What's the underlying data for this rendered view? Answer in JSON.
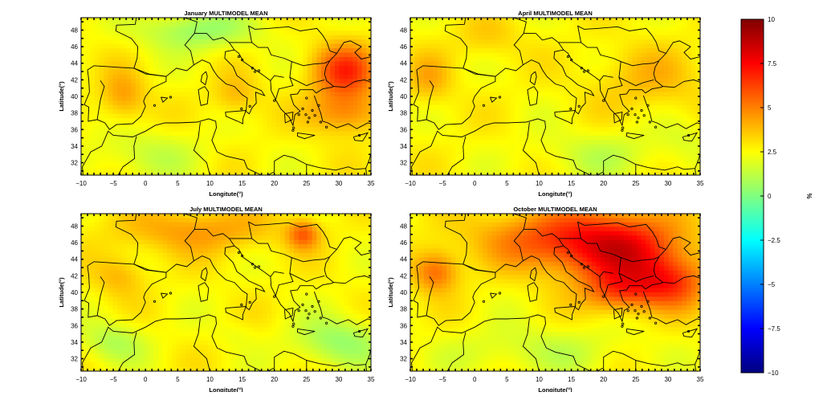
{
  "panels": [
    {
      "title": "January MULTIMODEL MEAN",
      "xlabel": "Longitute(°)",
      "ylabel": "Latitude(°)",
      "blobs": [
        {
          "lon": 31,
          "lat": 43,
          "rx": 5.0,
          "ry": 3.2,
          "v": 6.5
        },
        {
          "lon": 31,
          "lat": 38,
          "rx": 5.5,
          "ry": 2.6,
          "v": 5.0
        },
        {
          "lon": 14,
          "lat": 40,
          "rx": 3.5,
          "ry": 2.5,
          "v": 4.0
        },
        {
          "lon": -3.5,
          "lat": 40,
          "rx": 3.5,
          "ry": 3.0,
          "v": 4.5
        },
        {
          "lon": 8,
          "lat": 48,
          "rx": 9,
          "ry": 2.5,
          "v": 0.5
        },
        {
          "lon": 0,
          "lat": 33,
          "rx": 9,
          "ry": 3.0,
          "v": 1.5
        }
      ]
    },
    {
      "title": "April MULTIMODEL MEAN",
      "xlabel": "Longitute(°)",
      "ylabel": "Latitude(°)",
      "blobs": [
        {
          "lon": -7,
          "lat": 42,
          "rx": 3.5,
          "ry": 3.0,
          "v": 4.0
        },
        {
          "lon": 27,
          "lat": 42,
          "rx": 9,
          "ry": 4.0,
          "v": 3.8
        },
        {
          "lon": 2,
          "lat": 47,
          "rx": 5,
          "ry": 2.5,
          "v": 3.5
        },
        {
          "lon": 20,
          "lat": 33,
          "rx": 10,
          "ry": 3.0,
          "v": 1.5
        },
        {
          "lon": 33,
          "lat": 35,
          "rx": 4,
          "ry": 2.5,
          "v": 2.0
        }
      ]
    },
    {
      "title": "July MULTIMODEL MEAN",
      "xlabel": "Longitute(°)",
      "ylabel": "Latitude(°)",
      "blobs": [
        {
          "lon": 8,
          "lat": 47.5,
          "rx": 12,
          "ry": 2.8,
          "v": 4.5
        },
        {
          "lon": 24.5,
          "lat": 47,
          "rx": 2.5,
          "ry": 1.8,
          "v": 5.5
        },
        {
          "lon": -4,
          "lat": 42,
          "rx": 4,
          "ry": 2.5,
          "v": 4.0
        },
        {
          "lon": 30,
          "lat": 34,
          "rx": 7,
          "ry": 3.0,
          "v": 0.5
        },
        {
          "lon": -5,
          "lat": 34,
          "rx": 5,
          "ry": 2.5,
          "v": 1.0
        },
        {
          "lon": 14,
          "lat": 35,
          "rx": 3,
          "ry": 1.5,
          "v": 2.2
        }
      ]
    },
    {
      "title": "October MULTIMODEL MEAN",
      "xlabel": "Longitute(°)",
      "ylabel": "Latitude(°)",
      "blobs": [
        {
          "lon": 23,
          "lat": 45,
          "rx": 10,
          "ry": 4.5,
          "v": 7.0
        },
        {
          "lon": 12,
          "lat": 46.5,
          "rx": 12,
          "ry": 3.5,
          "v": 5.5
        },
        {
          "lon": -6,
          "lat": 42.5,
          "rx": 3.5,
          "ry": 2.5,
          "v": 5.5
        },
        {
          "lon": 30,
          "lat": 41,
          "rx": 6,
          "ry": 3.0,
          "v": 6.0
        },
        {
          "lon": 10,
          "lat": 33,
          "rx": 14,
          "ry": 3.0,
          "v": 1.5
        },
        {
          "lon": 22,
          "lat": 40,
          "rx": 5,
          "ry": 2.5,
          "v": 5.0
        }
      ]
    }
  ],
  "axes": {
    "xticks": [
      "−10",
      "−5",
      "0",
      "5",
      "10",
      "15",
      "20",
      "25",
      "30",
      "35"
    ],
    "xvals": [
      -10,
      -5,
      0,
      5,
      10,
      15,
      20,
      25,
      30,
      35
    ],
    "yticks": [
      "32",
      "34",
      "36",
      "38",
      "40",
      "42",
      "44",
      "46",
      "48"
    ],
    "yvals": [
      32,
      34,
      36,
      38,
      40,
      42,
      44,
      46,
      48
    ],
    "xlim": [
      -10,
      35
    ],
    "ylim": [
      30.5,
      49.5
    ]
  },
  "colorbar": {
    "label": "%",
    "range": [
      -10,
      10
    ],
    "ticks": [
      "10",
      "7.5",
      "5",
      "2.5",
      "0",
      "−2.5",
      "−5",
      "−7.5",
      "−10"
    ],
    "tickvals": [
      10,
      7.5,
      5,
      2.5,
      0,
      -2.5,
      -5,
      -7.5,
      -10
    ],
    "colors": [
      "#00007f",
      "#0000ff",
      "#0080ff",
      "#00ffff",
      "#80ff80",
      "#ffff00",
      "#ff8000",
      "#ff0000",
      "#7f0000"
    ]
  },
  "chart_data": {
    "type": "heatmap",
    "title": "January / April / July / October MULTIMODEL MEAN",
    "xlabel": "Longitute(°)",
    "ylabel": "Latitude(°)",
    "xlim": [
      -10,
      35
    ],
    "ylim": [
      30.5,
      49.5
    ],
    "color_range": [
      -10,
      10
    ],
    "colorbar_label": "%",
    "base_value": 2.6
  }
}
